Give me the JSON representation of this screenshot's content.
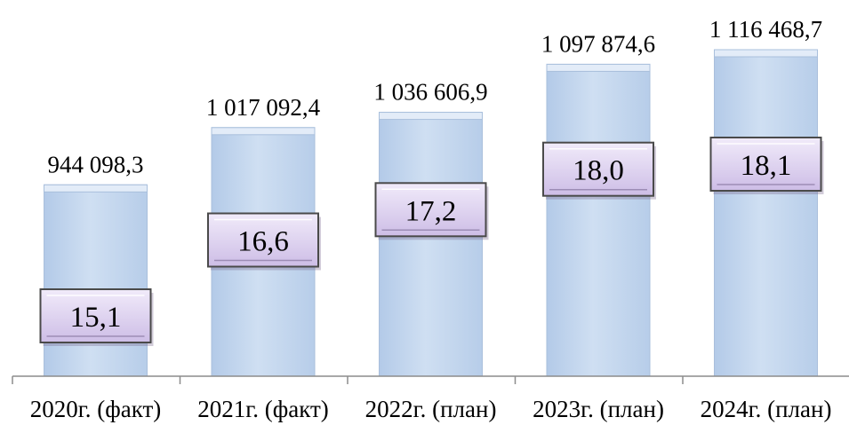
{
  "chart_data": {
    "type": "bar",
    "title": "",
    "xlabel": "",
    "ylabel": "",
    "categories": [
      "2020г. (факт)",
      "2021г. (факт)",
      "2022г. (план)",
      "2023г. (план)",
      "2024г. (план)"
    ],
    "series": [
      {
        "values": [
          944098.3,
          1017092.4,
          1036606.9,
          1097874.6,
          1116468.7
        ],
        "value_labels": [
          "944 098,3",
          "1 017 092,4",
          "1 036 606,9",
          "1 097 874,6",
          "1 116 468,7"
        ]
      },
      {
        "values": [
          15.1,
          16.6,
          17.2,
          18.0,
          18.1
        ],
        "value_labels": [
          "15,1",
          "16,6",
          "17,2",
          "18,0",
          "18,1"
        ]
      }
    ],
    "ylim": [
      700000,
      1150000
    ],
    "grid": false,
    "legend": "none",
    "colors": {
      "bar_fill": "#c5d8ef",
      "bar_top": "#e3ecf8",
      "badge_fill": "#dcd0ee",
      "badge_border": "#4a4a4a",
      "axis": "#8c8c8c"
    }
  }
}
